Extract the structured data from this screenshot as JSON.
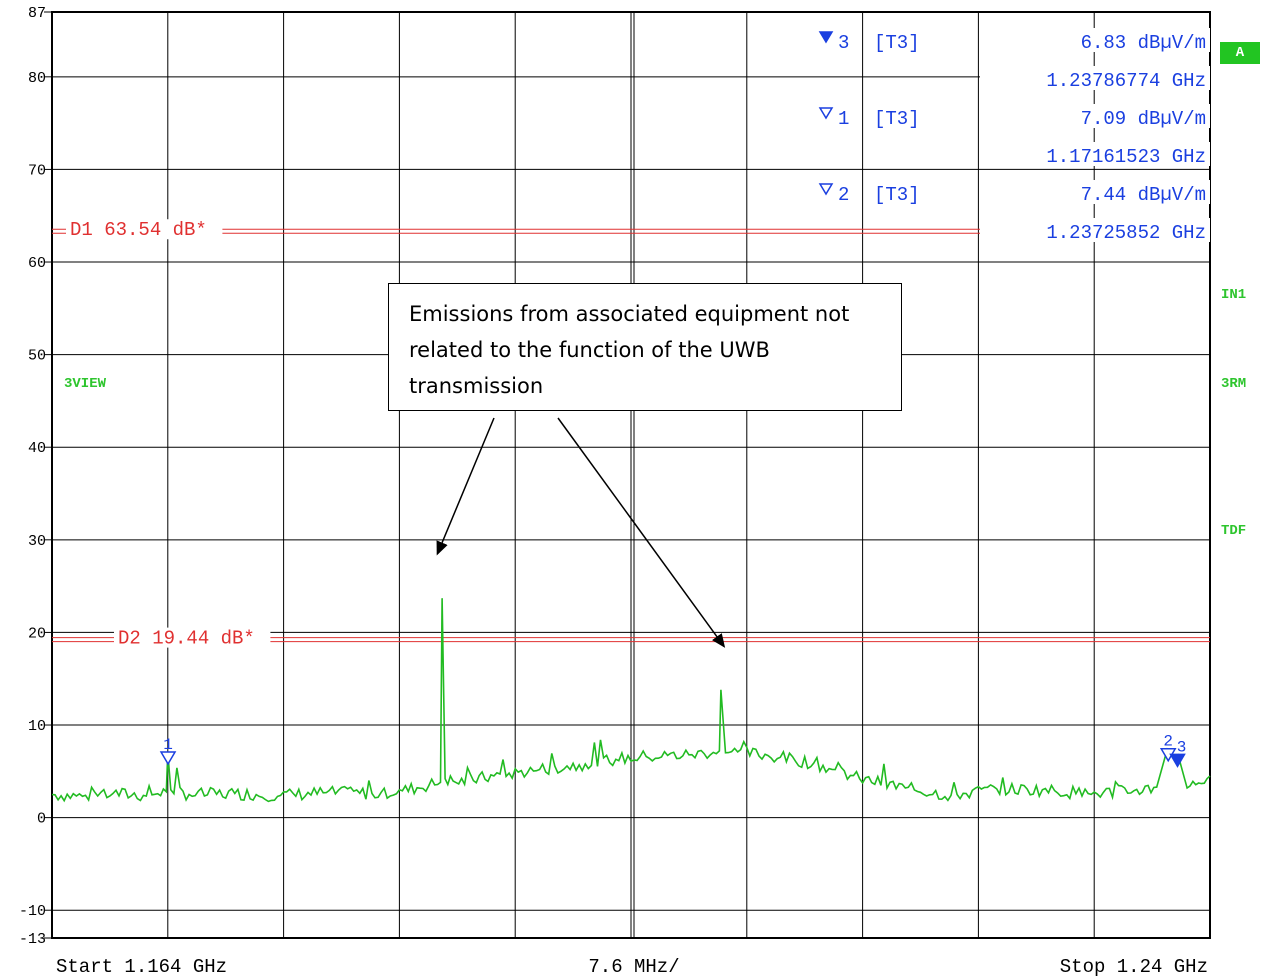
{
  "chart_data": {
    "type": "line",
    "ylim": [
      -13,
      87
    ],
    "xlim": [
      1.164,
      1.24
    ],
    "x_unit": "GHz",
    "yticks": [
      87,
      80,
      70,
      60,
      50,
      40,
      30,
      20,
      10,
      0,
      -10,
      -13
    ],
    "ytick_labels": [
      "87",
      "80",
      "70",
      "60",
      "50",
      "40",
      "30",
      "20",
      "10",
      "0",
      "-10",
      "-13"
    ],
    "x_start_label": "Start 1.164 GHz",
    "x_div_label": "7.6 MHz/",
    "x_stop_label": "Stop 1.24 GHz",
    "grid": true,
    "series": [
      {
        "color": "#22bb22",
        "x": [
          1.164,
          1.166,
          1.168,
          1.17,
          1.1715,
          1.1716,
          1.1718,
          1.173,
          1.176,
          1.179,
          1.182,
          1.185,
          1.187,
          1.1895,
          1.1896,
          1.1898,
          1.1905,
          1.193,
          1.196,
          1.199,
          1.201,
          1.203,
          1.206,
          1.2078,
          1.2079,
          1.2082,
          1.209,
          1.211,
          1.214,
          1.217,
          1.22,
          1.223,
          1.226,
          1.229,
          1.232,
          1.235,
          1.2365,
          1.2372,
          1.2379,
          1.2385,
          1.24
        ],
        "y": [
          2.5,
          2.3,
          2.6,
          2.4,
          2.8,
          7.0,
          3.0,
          2.5,
          2.6,
          2.4,
          2.7,
          2.6,
          2.9,
          3.8,
          23.7,
          4.2,
          3.8,
          4.5,
          5.2,
          5.8,
          6.3,
          6.6,
          6.8,
          7.2,
          13.8,
          7.0,
          7.1,
          6.7,
          5.9,
          4.2,
          3.2,
          2.4,
          3.1,
          3.0,
          2.6,
          2.9,
          3.3,
          7.4,
          6.8,
          3.2,
          4.5
        ]
      }
    ],
    "display_lines": [
      {
        "label": "D1 63.54 dB*",
        "y": 63.54
      },
      {
        "label": "D2 19.44 dB*",
        "y": 19.44
      }
    ],
    "markers": [
      {
        "id": "1",
        "x": 1.17161523,
        "y": 7.09,
        "filled": false
      },
      {
        "id": "2",
        "x": 1.23725852,
        "y": 7.44,
        "filled": false
      },
      {
        "id": "3",
        "x": 1.23786774,
        "y": 6.83,
        "filled": true
      }
    ],
    "marker_table": [
      {
        "num": "3",
        "filled": true,
        "trace": "[T3]",
        "level": "6.83 dBµV/m",
        "freq": "1.23786774 GHz"
      },
      {
        "num": "1",
        "filled": false,
        "trace": "[T3]",
        "level": "7.09 dBµV/m",
        "freq": "1.17161523 GHz"
      },
      {
        "num": "2",
        "filled": false,
        "trace": "[T3]",
        "level": "7.44 dBµV/m",
        "freq": "1.23725852 GHz"
      }
    ],
    "annotation": {
      "text": "Emissions from associated equipment not related to the function of the UWB transmission",
      "arrow_targets": [
        {
          "x": 1.1893,
          "y": 28.5
        },
        {
          "x": 1.2081,
          "y": 18.5
        }
      ]
    }
  },
  "side_labels": {
    "badge": "A",
    "in1": "IN1",
    "rm": "3RM",
    "tdf": "TDF",
    "view": "3VIEW"
  },
  "colors": {
    "trace": "#22bb22",
    "display_line": "#e03030",
    "marker": "#1a3fe0",
    "grid": "#000000",
    "side_label": "#2ec52e"
  }
}
